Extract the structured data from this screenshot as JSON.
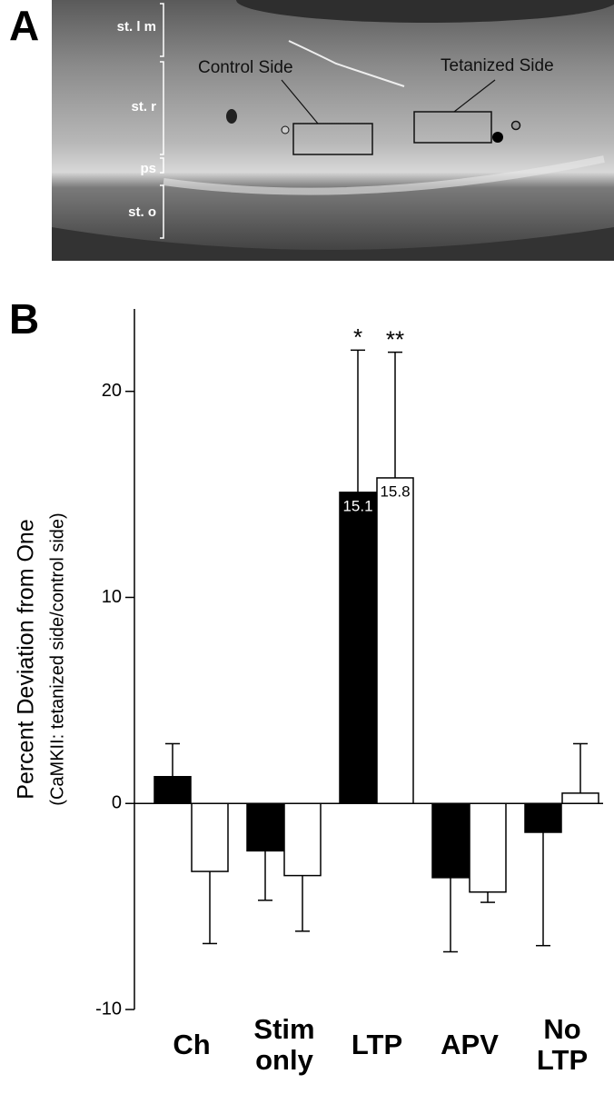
{
  "panel_a": {
    "label": "A",
    "layers": [
      "st. l m",
      "st. r",
      "ps",
      "st. o"
    ],
    "regions": [
      "Control Side",
      "Tetanized Side"
    ]
  },
  "chart_data": {
    "type": "bar",
    "panel_label": "B",
    "ylabel": [
      "Percent Deviation from One",
      "(CaMKII: tetanized side/control side)"
    ],
    "categories": [
      [
        "Ch"
      ],
      [
        "Stim",
        "only"
      ],
      [
        "LTP"
      ],
      [
        "APV"
      ],
      [
        "No",
        "LTP"
      ]
    ],
    "series": [
      {
        "color": "#000000",
        "values": [
          1.3,
          -2.3,
          15.1,
          -3.6,
          -1.4
        ],
        "errors": [
          1.6,
          2.4,
          6.9,
          3.6,
          5.5
        ],
        "value_labels": [
          null,
          null,
          "15.1",
          null,
          null
        ],
        "significance": [
          null,
          null,
          "*",
          null,
          null
        ]
      },
      {
        "color": "#ffffff",
        "values": [
          -3.3,
          -3.5,
          15.8,
          -4.3,
          0.5
        ],
        "errors": [
          3.5,
          2.7,
          6.1,
          0.5,
          2.4
        ],
        "value_labels": [
          null,
          null,
          "15.8",
          null,
          null
        ],
        "significance": [
          null,
          null,
          "**",
          null,
          null
        ]
      }
    ],
    "ylim": [
      -10,
      24
    ],
    "yticks": [
      -10,
      0,
      10,
      20
    ]
  }
}
